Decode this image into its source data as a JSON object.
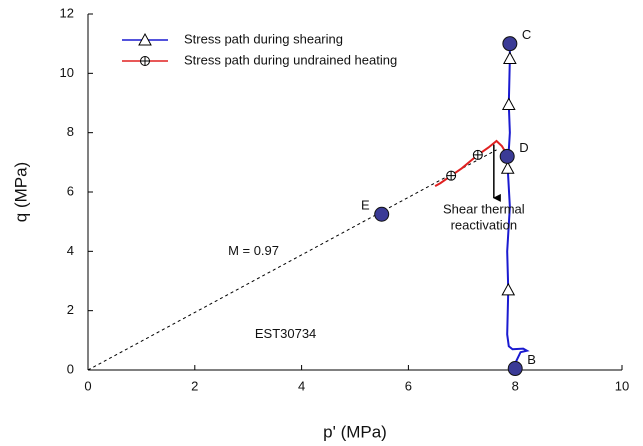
{
  "chart_data": {
    "type": "line",
    "xlabel": "p' (MPa)",
    "ylabel": "q (MPa)",
    "xlim": [
      0,
      10
    ],
    "ylim": [
      0,
      12
    ],
    "xticks": [
      0,
      2,
      4,
      6,
      8,
      10
    ],
    "yticks": [
      0,
      2,
      4,
      6,
      8,
      10,
      12
    ],
    "series": [
      {
        "name": "Stress path during shearing",
        "color": "#1a1ad0",
        "marker": "triangle",
        "x": [
          8.0,
          8.02,
          8.1,
          8.22,
          8.15,
          7.95,
          7.88,
          7.85,
          7.87,
          7.85,
          7.9,
          7.86,
          7.9,
          7.88,
          7.9,
          7.9
        ],
        "values": [
          0.05,
          0.3,
          0.6,
          0.65,
          0.72,
          0.7,
          0.8,
          1.2,
          2.7,
          4.0,
          5.5,
          6.8,
          8.0,
          8.95,
          10.5,
          11.0
        ],
        "markers": {
          "x": [
            7.87,
            7.86,
            7.88,
            7.9
          ],
          "values": [
            2.7,
            6.8,
            8.95,
            10.5
          ]
        }
      },
      {
        "name": "Stress path during undrained heating",
        "color": "#e02020",
        "marker": "circle-plus",
        "x": [
          6.5,
          6.6,
          6.8,
          7.0,
          7.3,
          7.5,
          7.65,
          7.75,
          7.85
        ],
        "values": [
          6.2,
          6.3,
          6.55,
          6.8,
          7.25,
          7.5,
          7.72,
          7.55,
          7.25
        ],
        "markers": {
          "x": [
            6.8,
            7.3
          ],
          "values": [
            6.55,
            7.25
          ]
        }
      }
    ],
    "points": [
      {
        "label": "B",
        "x": 8.0,
        "y": 0.05
      },
      {
        "label": "C",
        "x": 7.9,
        "y": 11.0
      },
      {
        "label": "D",
        "x": 7.85,
        "y": 7.2
      },
      {
        "label": "E",
        "x": 5.5,
        "y": 5.25
      }
    ],
    "reference_line": {
      "label": "M = 0.97",
      "x": [
        0,
        7.65
      ],
      "values": [
        0,
        7.42
      ]
    },
    "annotations": [
      {
        "text": [
          "Shear thermal",
          "reactivation"
        ],
        "x": 7.6,
        "y_from": 7.6,
        "y_to": 5.8
      },
      {
        "text": [
          "M = 0.97"
        ],
        "x": 3.1,
        "y": 4.0
      },
      {
        "text": [
          "EST30734"
        ],
        "x": 3.7,
        "y": 1.2
      }
    ]
  }
}
